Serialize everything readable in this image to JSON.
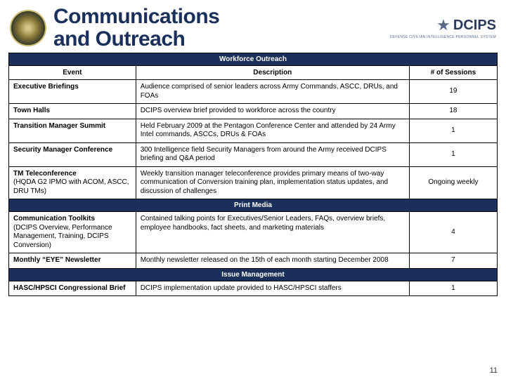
{
  "header": {
    "title_line1": "Communications",
    "title_line2": "and Outreach",
    "logo_text": "DCIPS",
    "logo_sub": "DEFENSE CIVILIAN INTELLIGENCE PERSONNEL SYSTEM"
  },
  "columns": {
    "event": "Event",
    "description": "Description",
    "sessions": "# of Sessions"
  },
  "sections": [
    {
      "title": "Workforce Outreach",
      "rows": [
        {
          "event": "Executive Briefings",
          "event_sub": "",
          "description": "Audience comprised of senior leaders across Army Commands, ASCC, DRUs, and FOAs",
          "sessions": "19"
        },
        {
          "event": "Town Halls",
          "event_sub": "",
          "description": "DCIPS overview brief provided to workforce across the country",
          "sessions": "18"
        },
        {
          "event": "Transition Manager Summit",
          "event_sub": "",
          "description": "Held February 2009 at the Pentagon Conference Center and attended by 24 Army Intel commands, ASCCs, DRUs & FOAs",
          "sessions": "1"
        },
        {
          "event": "Security Manager Conference",
          "event_sub": "",
          "description": "300 Intelligence field Security Managers from around the Army received DCIPS briefing and Q&A period",
          "sessions": "1"
        },
        {
          "event": "TM Teleconference",
          "event_sub": "(HQDA G2 IPMO with ACOM, ASCC, DRU TMs)",
          "description": "Weekly transition manager teleconference provides primary means of two-way communication of Conversion training plan, implementation status updates, and discussion of challenges",
          "sessions": "Ongoing weekly"
        }
      ]
    },
    {
      "title": "Print Media",
      "rows": [
        {
          "event": "Communication Toolkits",
          "event_sub": "(DCIPS Overview, Performance Management, Training, DCIPS Conversion)",
          "description": "Contained talking points for Executives/Senior Leaders, FAQs, overview briefs, employee handbooks, fact sheets, and marketing materials",
          "sessions": "4"
        },
        {
          "event": "Monthly “EYE” Newsletter",
          "event_sub": "",
          "description": "Monthly newsletter released on the 15th of each month starting December 2008",
          "sessions": "7"
        }
      ]
    },
    {
      "title": "Issue Management",
      "rows": [
        {
          "event": "HASC/HPSCI Congressional Brief",
          "event_sub": "",
          "description": "DCIPS implementation update provided to HASC/HPSCI staffers",
          "sessions": "1"
        }
      ]
    }
  ],
  "page_number": "11"
}
